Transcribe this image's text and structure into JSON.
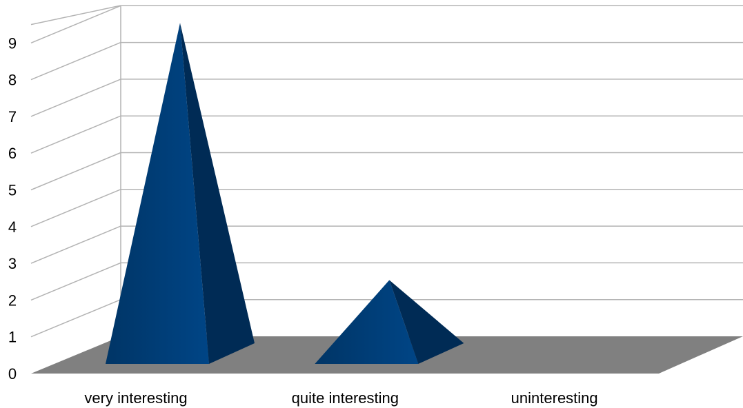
{
  "chart_data": {
    "type": "bar",
    "style": "3d-pyramid",
    "categories": [
      "very interesting",
      "quite interesting",
      "uninteresting"
    ],
    "values": [
      9,
      2,
      0
    ],
    "ylim": [
      0,
      9
    ],
    "yticks": [
      "0",
      "1",
      "2",
      "3",
      "4",
      "5",
      "6",
      "7",
      "8",
      "9"
    ],
    "grid": true,
    "legend": "none",
    "colors": {
      "bar_front": "#004586",
      "bar_side": "#002b55",
      "floor": "#808080",
      "grid": "#b3b3b3",
      "wall": "#ffffff"
    }
  }
}
